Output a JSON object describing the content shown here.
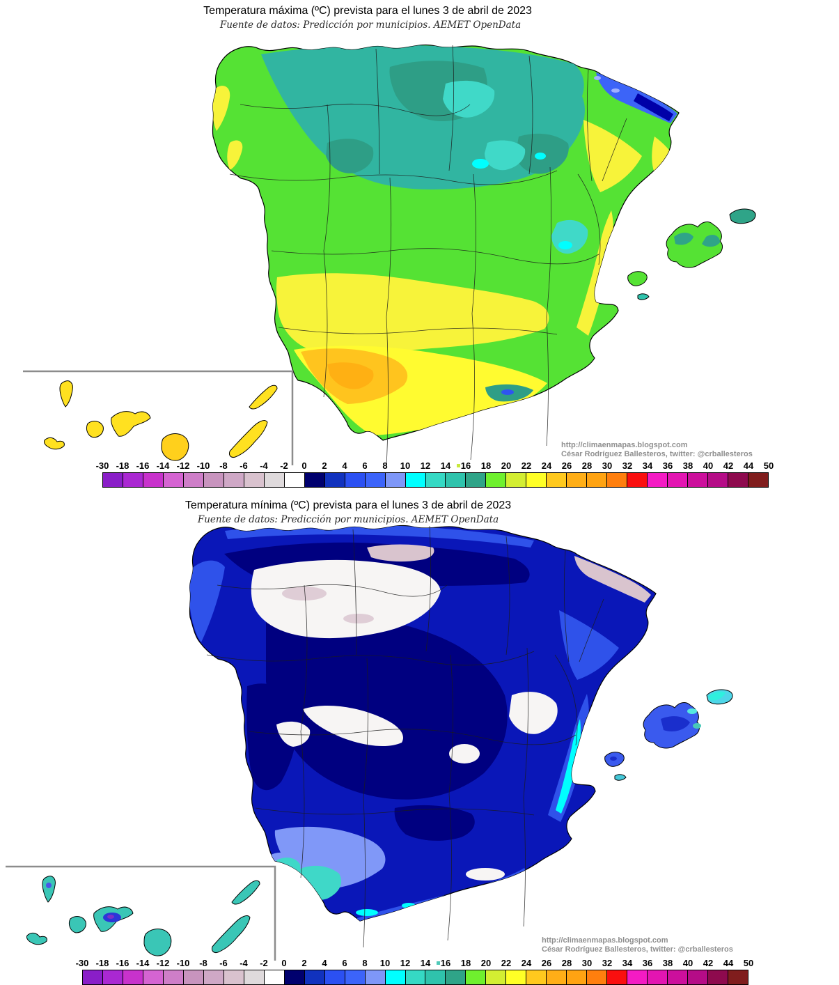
{
  "page_bg": "#FFFFFF",
  "maps": {
    "max": {
      "title": "Temperatura máxima (ºC) prevista para el lunes 3 de abril de 2023",
      "subtitle": "Fuente de datos: Predicción por municipios. AEMET OpenData",
      "credit_url": "http://climaenmapas.blogspot.com",
      "credit_author": "César Rodríguez Ballesteros, twitter: @crballesteros",
      "artifact_color": "#C8E83C"
    },
    "min": {
      "title": "Temperatura mínima (ºC) prevista para el lunes 3 de abril de 2023",
      "subtitle": "Fuente de datos: Predicción por municipios. AEMET OpenData",
      "credit_url": "http://climaenmapas.blogspot.com",
      "credit_author": "César Rodríguez Ballesteros, twitter: @crballesteros",
      "artifact_color": "#4FC8B8"
    }
  },
  "scale": {
    "unit": "ºC",
    "range": [
      -30,
      50
    ],
    "step": 2,
    "tick_labels": [
      "-30",
      "-18",
      "-16",
      "-14",
      "-12",
      "-10",
      "-8",
      "-6",
      "-4",
      "-2",
      "0",
      "2",
      "4",
      "6",
      "8",
      "10",
      "12",
      "14",
      "16",
      "18",
      "20",
      "22",
      "24",
      "26",
      "28",
      "30",
      "32",
      "34",
      "36",
      "38",
      "40",
      "42",
      "44",
      "50"
    ],
    "cell_colors": [
      "#8A1EC8",
      "#AA28D2",
      "#C832CC",
      "#D564D2",
      "#CE7EC8",
      "#C894BE",
      "#CFA8C6",
      "#D9C2CE",
      "#DFDADC",
      "#FFFFFF",
      "#00006E",
      "#1132BE",
      "#2B50F2",
      "#3C64FA",
      "#7E97F8",
      "#00FFFF",
      "#35D9C4",
      "#2FC3AC",
      "#2FA488",
      "#6FF02E",
      "#D3EE32",
      "#FFFF26",
      "#FFC91E",
      "#FFAE17",
      "#FFA312",
      "#FF7F0E",
      "#FA0F0F",
      "#F41BC4",
      "#E315B2",
      "#CC0F9C",
      "#B50C87",
      "#8E0A4E",
      "#801D1D"
    ]
  }
}
